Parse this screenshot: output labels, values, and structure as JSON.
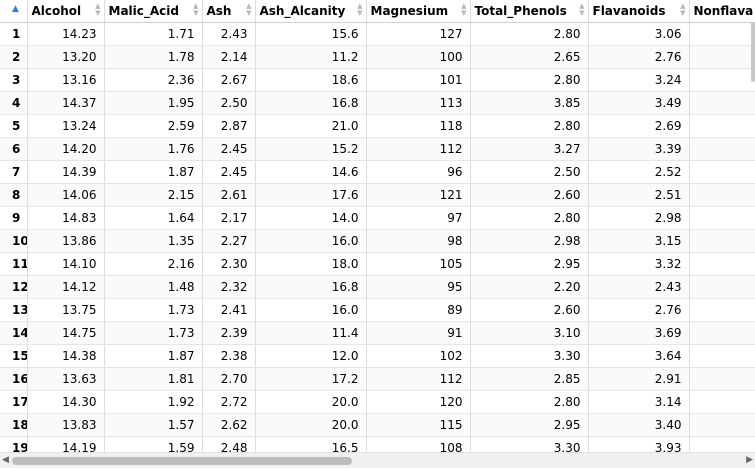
{
  "columns": [
    "Alcohol",
    "Malic_Acid",
    "Ash",
    "Ash_Alcanity",
    "Magnesium",
    "Total_Phenols",
    "Flavanoids",
    "Nonflava"
  ],
  "rows": [
    {
      "n": "1",
      "cells": [
        "14.23",
        "1.71",
        "2.43",
        "15.6",
        "127",
        "2.80",
        "3.06",
        ""
      ]
    },
    {
      "n": "2",
      "cells": [
        "13.20",
        "1.78",
        "2.14",
        "11.2",
        "100",
        "2.65",
        "2.76",
        ""
      ]
    },
    {
      "n": "3",
      "cells": [
        "13.16",
        "2.36",
        "2.67",
        "18.6",
        "101",
        "2.80",
        "3.24",
        ""
      ]
    },
    {
      "n": "4",
      "cells": [
        "14.37",
        "1.95",
        "2.50",
        "16.8",
        "113",
        "3.85",
        "3.49",
        ""
      ]
    },
    {
      "n": "5",
      "cells": [
        "13.24",
        "2.59",
        "2.87",
        "21.0",
        "118",
        "2.80",
        "2.69",
        ""
      ]
    },
    {
      "n": "6",
      "cells": [
        "14.20",
        "1.76",
        "2.45",
        "15.2",
        "112",
        "3.27",
        "3.39",
        ""
      ]
    },
    {
      "n": "7",
      "cells": [
        "14.39",
        "1.87",
        "2.45",
        "14.6",
        "96",
        "2.50",
        "2.52",
        ""
      ]
    },
    {
      "n": "8",
      "cells": [
        "14.06",
        "2.15",
        "2.61",
        "17.6",
        "121",
        "2.60",
        "2.51",
        ""
      ]
    },
    {
      "n": "9",
      "cells": [
        "14.83",
        "1.64",
        "2.17",
        "14.0",
        "97",
        "2.80",
        "2.98",
        ""
      ]
    },
    {
      "n": "10",
      "cells": [
        "13.86",
        "1.35",
        "2.27",
        "16.0",
        "98",
        "2.98",
        "3.15",
        ""
      ]
    },
    {
      "n": "11",
      "cells": [
        "14.10",
        "2.16",
        "2.30",
        "18.0",
        "105",
        "2.95",
        "3.32",
        ""
      ]
    },
    {
      "n": "12",
      "cells": [
        "14.12",
        "1.48",
        "2.32",
        "16.8",
        "95",
        "2.20",
        "2.43",
        ""
      ]
    },
    {
      "n": "13",
      "cells": [
        "13.75",
        "1.73",
        "2.41",
        "16.0",
        "89",
        "2.60",
        "2.76",
        ""
      ]
    },
    {
      "n": "14",
      "cells": [
        "14.75",
        "1.73",
        "2.39",
        "11.4",
        "91",
        "3.10",
        "3.69",
        ""
      ]
    },
    {
      "n": "15",
      "cells": [
        "14.38",
        "1.87",
        "2.38",
        "12.0",
        "102",
        "3.30",
        "3.64",
        ""
      ]
    },
    {
      "n": "16",
      "cells": [
        "13.63",
        "1.81",
        "2.70",
        "17.2",
        "112",
        "2.85",
        "2.91",
        ""
      ]
    },
    {
      "n": "17",
      "cells": [
        "14.30",
        "1.92",
        "2.72",
        "20.0",
        "120",
        "2.80",
        "3.14",
        ""
      ]
    },
    {
      "n": "18",
      "cells": [
        "13.83",
        "1.57",
        "2.62",
        "20.0",
        "115",
        "2.95",
        "3.40",
        ""
      ]
    },
    {
      "n": "19",
      "cells": [
        "14.19",
        "1.59",
        "2.48",
        "16.5",
        "108",
        "3.30",
        "3.93",
        ""
      ]
    }
  ]
}
